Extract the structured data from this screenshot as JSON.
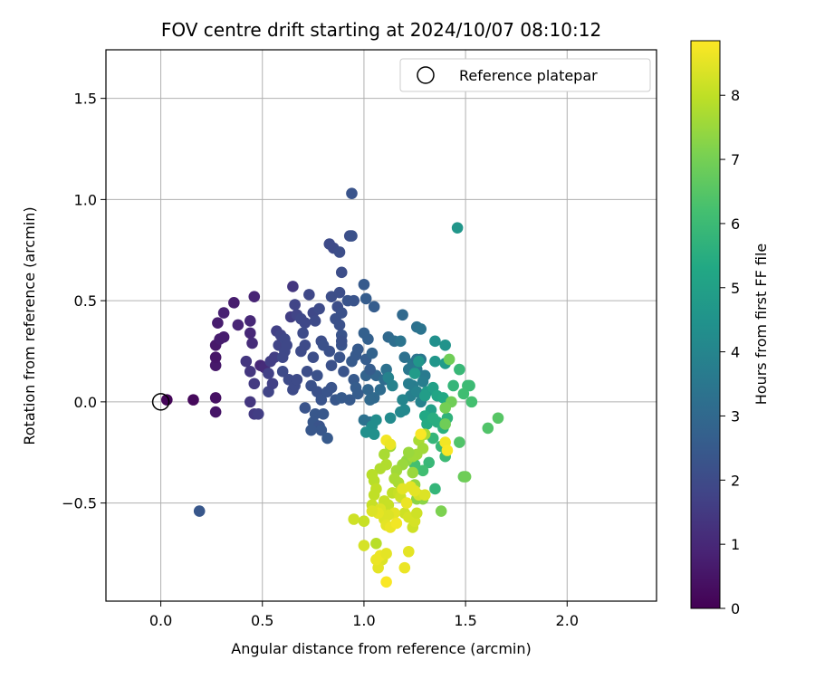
{
  "chart_data": {
    "type": "scatter",
    "title": "FOV centre drift starting at 2024/10/07 08:10:12",
    "xlabel": "Angular distance from reference (arcmin)",
    "ylabel": "Rotation from reference (arcmin)",
    "colorbar_label": "Hours from first FF file",
    "xlim": [
      -0.27,
      2.44
    ],
    "ylim": [
      -0.985,
      1.74
    ],
    "xticks": [
      0.0,
      0.5,
      1.0,
      1.5,
      2.0
    ],
    "yticks": [
      -0.5,
      0.0,
      0.5,
      1.0,
      1.5
    ],
    "xtick_labels": [
      "0.0",
      "0.5",
      "1.0",
      "1.5",
      "2.0"
    ],
    "ytick_labels": [
      "−0.5",
      "0.0",
      "0.5",
      "1.0",
      "1.5"
    ],
    "colorbar_range": [
      0,
      8.85
    ],
    "colorbar_ticks": [
      "0",
      "1",
      "2",
      "3",
      "4",
      "5",
      "6",
      "7",
      "8"
    ],
    "colormap": "viridis",
    "grid": true,
    "legend": {
      "position": "top-right",
      "entries": [
        {
          "label": "Reference platepar",
          "marker": "open-circle",
          "x": 0.0,
          "y": 0.0
        }
      ]
    },
    "points": [
      [
        0.03,
        0.01,
        0.1
      ],
      [
        0.16,
        0.01,
        0.2
      ],
      [
        0.27,
        0.02,
        0.4
      ],
      [
        0.27,
        -0.05,
        0.5
      ],
      [
        0.27,
        0.18,
        0.6
      ],
      [
        0.27,
        0.22,
        0.5
      ],
      [
        0.27,
        0.28,
        0.6
      ],
      [
        0.29,
        0.31,
        0.7
      ],
      [
        0.31,
        0.32,
        0.7
      ],
      [
        0.28,
        0.39,
        0.7
      ],
      [
        0.31,
        0.44,
        0.8
      ],
      [
        0.36,
        0.49,
        0.7
      ],
      [
        0.38,
        0.38,
        0.9
      ],
      [
        0.44,
        0.4,
        1.0
      ],
      [
        0.44,
        0.34,
        1.0
      ],
      [
        0.46,
        0.52,
        0.9
      ],
      [
        0.45,
        0.29,
        1.1
      ],
      [
        0.42,
        0.2,
        1.4
      ],
      [
        0.44,
        0.15,
        1.4
      ],
      [
        0.46,
        0.09,
        1.5
      ],
      [
        0.44,
        0.0,
        1.4
      ],
      [
        0.46,
        -0.06,
        1.5
      ],
      [
        0.48,
        -0.06,
        1.6
      ],
      [
        0.49,
        0.18,
        1.0
      ],
      [
        0.51,
        0.17,
        1.1
      ],
      [
        0.53,
        0.14,
        1.7
      ],
      [
        0.53,
        0.05,
        1.8
      ],
      [
        0.55,
        0.09,
        1.7
      ],
      [
        0.54,
        0.2,
        1.6
      ],
      [
        0.56,
        0.22,
        1.6
      ],
      [
        0.57,
        0.35,
        1.7
      ],
      [
        0.58,
        0.28,
        1.8
      ],
      [
        0.59,
        0.33,
        1.8
      ],
      [
        0.61,
        0.31,
        1.9
      ],
      [
        0.61,
        0.25,
        1.9
      ],
      [
        0.62,
        0.28,
        1.9
      ],
      [
        0.6,
        0.22,
        1.9
      ],
      [
        0.6,
        0.15,
        2.0
      ],
      [
        0.63,
        0.11,
        2.0
      ],
      [
        0.65,
        0.06,
        2.0
      ],
      [
        0.66,
        0.08,
        2.0
      ],
      [
        0.67,
        0.11,
        2.0
      ],
      [
        0.64,
        0.42,
        1.6
      ],
      [
        0.66,
        0.48,
        1.8
      ],
      [
        0.65,
        0.57,
        1.4
      ],
      [
        0.67,
        0.43,
        1.8
      ],
      [
        0.69,
        0.41,
        1.9
      ],
      [
        0.71,
        0.39,
        1.9
      ],
      [
        0.7,
        0.34,
        2.0
      ],
      [
        0.71,
        0.28,
        2.0
      ],
      [
        0.69,
        0.25,
        2.0
      ],
      [
        0.72,
        0.15,
        2.1
      ],
      [
        0.73,
        0.53,
        1.9
      ],
      [
        0.75,
        0.44,
        1.9
      ],
      [
        0.76,
        0.4,
        2.0
      ],
      [
        0.78,
        0.46,
        2.0
      ],
      [
        0.79,
        0.3,
        2.1
      ],
      [
        0.8,
        0.28,
        2.2
      ],
      [
        0.75,
        0.22,
        2.1
      ],
      [
        0.77,
        0.13,
        2.2
      ],
      [
        0.74,
        0.08,
        2.2
      ],
      [
        0.77,
        0.05,
        2.2
      ],
      [
        0.71,
        -0.03,
        2.3
      ],
      [
        0.76,
        -0.06,
        2.4
      ],
      [
        0.75,
        -0.1,
        2.4
      ],
      [
        0.78,
        -0.12,
        2.3
      ],
      [
        0.79,
        -0.14,
        2.4
      ],
      [
        0.74,
        -0.14,
        2.4
      ],
      [
        0.82,
        -0.18,
        2.5
      ],
      [
        0.8,
        -0.06,
        2.4
      ],
      [
        0.79,
        0.01,
        2.3
      ],
      [
        0.82,
        0.05,
        2.3
      ],
      [
        0.84,
        0.07,
        2.3
      ],
      [
        0.86,
        0.01,
        2.4
      ],
      [
        0.84,
        0.18,
        2.2
      ],
      [
        0.83,
        0.25,
        2.2
      ],
      [
        0.88,
        0.22,
        2.3
      ],
      [
        0.89,
        0.28,
        2.3
      ],
      [
        0.89,
        0.33,
        2.3
      ],
      [
        0.86,
        0.41,
        2.2
      ],
      [
        0.87,
        0.47,
        2.1
      ],
      [
        0.88,
        0.38,
        2.2
      ],
      [
        0.89,
        0.44,
        2.2
      ],
      [
        0.84,
        0.52,
        2.1
      ],
      [
        0.88,
        0.54,
        2.1
      ],
      [
        0.89,
        0.64,
        2.1
      ],
      [
        0.85,
        0.76,
        2.0
      ],
      [
        0.83,
        0.78,
        2.0
      ],
      [
        0.88,
        0.74,
        2.1
      ],
      [
        0.93,
        0.82,
        2.1
      ],
      [
        0.94,
        0.82,
        2.2
      ],
      [
        0.94,
        1.03,
        2.3
      ],
      [
        0.92,
        0.5,
        2.3
      ],
      [
        0.95,
        0.5,
        2.3
      ],
      [
        0.94,
        0.2,
        2.5
      ],
      [
        0.95,
        0.11,
        2.5
      ],
      [
        0.96,
        0.07,
        2.6
      ],
      [
        0.93,
        0.01,
        2.5
      ],
      [
        0.89,
        0.02,
        2.5
      ],
      [
        0.96,
        0.23,
        2.5
      ],
      [
        0.97,
        0.26,
        2.5
      ],
      [
        1.01,
        0.21,
        2.6
      ],
      [
        1.0,
        0.58,
        2.5
      ],
      [
        1.01,
        0.51,
        2.6
      ],
      [
        1.05,
        0.47,
        2.6
      ],
      [
        1.0,
        0.34,
        2.7
      ],
      [
        1.02,
        0.31,
        2.7
      ],
      [
        1.04,
        0.24,
        2.8
      ],
      [
        1.03,
        0.15,
        2.8
      ],
      [
        1.06,
        0.13,
        2.9
      ],
      [
        1.01,
        0.13,
        2.8
      ],
      [
        1.02,
        0.06,
        2.9
      ],
      [
        1.05,
        0.02,
        3.0
      ],
      [
        1.03,
        0.01,
        3.0
      ],
      [
        1.0,
        -0.09,
        3.3
      ],
      [
        1.03,
        -0.1,
        3.3
      ],
      [
        1.08,
        0.06,
        3.1
      ],
      [
        1.1,
        0.11,
        3.1
      ],
      [
        1.11,
        0.16,
        3.3
      ],
      [
        1.12,
        0.32,
        3.0
      ],
      [
        1.15,
        0.3,
        3.2
      ],
      [
        1.18,
        0.3,
        3.4
      ],
      [
        1.19,
        0.43,
        3.0
      ],
      [
        1.2,
        0.22,
        3.3
      ],
      [
        1.22,
        0.16,
        3.5
      ],
      [
        1.24,
        0.19,
        3.5
      ],
      [
        1.26,
        0.16,
        3.6
      ],
      [
        1.26,
        0.21,
        3.4
      ],
      [
        1.28,
        0.21,
        3.5
      ],
      [
        1.26,
        0.37,
        3.3
      ],
      [
        1.28,
        0.36,
        3.4
      ],
      [
        1.3,
        0.13,
        3.6
      ],
      [
        1.29,
        0.1,
        3.7
      ],
      [
        1.24,
        0.08,
        3.7
      ],
      [
        1.22,
        0.09,
        3.7
      ],
      [
        1.23,
        0.03,
        3.8
      ],
      [
        1.26,
        0.05,
        3.9
      ],
      [
        1.28,
        0.0,
        3.9
      ],
      [
        1.19,
        0.01,
        4.0
      ],
      [
        1.14,
        0.08,
        3.9
      ],
      [
        1.12,
        0.12,
        3.9
      ],
      [
        1.18,
        -0.05,
        4.1
      ],
      [
        1.2,
        -0.04,
        4.1
      ],
      [
        1.13,
        -0.08,
        4.2
      ],
      [
        1.06,
        -0.09,
        4.3
      ],
      [
        1.04,
        -0.12,
        4.3
      ],
      [
        1.01,
        -0.15,
        4.4
      ],
      [
        1.05,
        -0.16,
        4.4
      ],
      [
        1.27,
        0.2,
        4.6
      ],
      [
        1.25,
        0.14,
        4.8
      ],
      [
        1.31,
        0.05,
        4.8
      ],
      [
        1.3,
        0.03,
        4.9
      ],
      [
        1.33,
        -0.04,
        5.0
      ],
      [
        1.35,
        0.3,
        4.4
      ],
      [
        1.4,
        0.28,
        4.5
      ],
      [
        1.35,
        0.2,
        4.6
      ],
      [
        1.4,
        0.19,
        4.8
      ],
      [
        1.34,
        0.07,
        5.0
      ],
      [
        1.36,
        0.03,
        5.2
      ],
      [
        1.39,
        0.02,
        5.3
      ],
      [
        1.3,
        -0.07,
        5.3
      ],
      [
        1.31,
        -0.11,
        5.4
      ],
      [
        1.34,
        -0.08,
        5.5
      ],
      [
        1.36,
        -0.1,
        5.5
      ],
      [
        1.39,
        -0.13,
        5.6
      ],
      [
        1.41,
        -0.08,
        5.7
      ],
      [
        1.34,
        -0.18,
        5.8
      ],
      [
        1.38,
        -0.22,
        5.9
      ],
      [
        1.4,
        -0.27,
        6.0
      ],
      [
        1.32,
        -0.3,
        5.9
      ],
      [
        1.29,
        -0.34,
        6.1
      ],
      [
        1.25,
        -0.31,
        6.2
      ],
      [
        1.35,
        -0.43,
        5.8
      ],
      [
        1.46,
        0.86,
        4.6
      ],
      [
        1.44,
        0.08,
        5.8
      ],
      [
        1.47,
        0.16,
        5.9
      ],
      [
        1.51,
        0.08,
        6.0
      ],
      [
        1.52,
        0.08,
        6.0
      ],
      [
        1.49,
        0.04,
        6.1
      ],
      [
        1.53,
        0.0,
        6.2
      ],
      [
        1.47,
        -0.2,
        6.4
      ],
      [
        1.61,
        -0.13,
        6.4
      ],
      [
        1.66,
        -0.08,
        6.5
      ],
      [
        1.49,
        -0.37,
        6.8
      ],
      [
        1.5,
        -0.37,
        6.9
      ],
      [
        1.42,
        0.21,
        6.9
      ],
      [
        1.43,
        0.0,
        6.9
      ],
      [
        1.4,
        -0.11,
        6.9
      ],
      [
        1.4,
        -0.03,
        7.0
      ],
      [
        1.38,
        -0.54,
        7.1
      ],
      [
        1.28,
        -0.47,
        7.2
      ],
      [
        1.26,
        -0.48,
        7.3
      ],
      [
        1.29,
        -0.48,
        7.3
      ],
      [
        1.25,
        -0.41,
        7.4
      ],
      [
        1.24,
        -0.35,
        7.5
      ],
      [
        1.21,
        -0.29,
        7.4
      ],
      [
        1.19,
        -0.31,
        7.5
      ],
      [
        1.16,
        -0.34,
        7.6
      ],
      [
        1.15,
        -0.38,
        7.7
      ],
      [
        1.17,
        -0.4,
        7.7
      ],
      [
        1.24,
        -0.27,
        7.6
      ],
      [
        1.26,
        -0.26,
        7.6
      ],
      [
        1.22,
        -0.25,
        7.5
      ],
      [
        1.27,
        -0.19,
        7.7
      ],
      [
        1.3,
        -0.16,
        7.7
      ],
      [
        1.29,
        -0.23,
        7.6
      ],
      [
        1.13,
        -0.22,
        7.6
      ],
      [
        1.1,
        -0.26,
        7.7
      ],
      [
        1.11,
        -0.31,
        7.8
      ],
      [
        1.08,
        -0.33,
        7.8
      ],
      [
        1.04,
        -0.36,
        7.9
      ],
      [
        1.05,
        -0.39,
        7.9
      ],
      [
        1.06,
        -0.43,
        8.0
      ],
      [
        1.05,
        -0.46,
        8.0
      ],
      [
        1.04,
        -0.51,
        8.1
      ],
      [
        1.09,
        -0.53,
        8.2
      ],
      [
        1.1,
        -0.49,
        8.1
      ],
      [
        1.12,
        -0.51,
        8.1
      ],
      [
        1.14,
        -0.45,
        8.0
      ],
      [
        1.17,
        -0.45,
        8.1
      ],
      [
        1.18,
        -0.47,
        8.2
      ],
      [
        1.2,
        -0.55,
        8.2
      ],
      [
        1.22,
        -0.57,
        8.3
      ],
      [
        1.24,
        -0.62,
        8.2
      ],
      [
        1.25,
        -0.59,
        8.3
      ],
      [
        1.26,
        -0.55,
        8.2
      ],
      [
        1.27,
        -0.46,
        8.3
      ],
      [
        1.3,
        -0.46,
        8.4
      ],
      [
        1.25,
        -0.44,
        8.5
      ],
      [
        1.23,
        -0.42,
        8.5
      ],
      [
        1.21,
        -0.5,
        8.6
      ],
      [
        1.19,
        -0.43,
        8.5
      ],
      [
        1.15,
        -0.55,
        8.5
      ],
      [
        1.12,
        -0.56,
        8.4
      ],
      [
        1.1,
        -0.58,
        8.4
      ],
      [
        1.08,
        -0.53,
        8.4
      ],
      [
        1.07,
        -0.55,
        8.5
      ],
      [
        1.11,
        -0.61,
        8.5
      ],
      [
        1.13,
        -0.62,
        8.6
      ],
      [
        1.16,
        -0.6,
        8.7
      ],
      [
        1.09,
        -0.78,
        8.4
      ],
      [
        1.07,
        -0.82,
        8.5
      ],
      [
        1.06,
        -0.78,
        8.6
      ],
      [
        1.08,
        -0.76,
        8.6
      ],
      [
        1.11,
        -0.75,
        8.5
      ],
      [
        1.11,
        -0.89,
        8.8
      ],
      [
        1.2,
        -0.82,
        8.6
      ],
      [
        1.22,
        -0.74,
        8.5
      ],
      [
        0.95,
        -0.58,
        8.2
      ],
      [
        1.0,
        -0.59,
        8.1
      ],
      [
        1.0,
        -0.71,
        8.3
      ],
      [
        1.04,
        -0.54,
        8.4
      ],
      [
        1.06,
        -0.7,
        7.9
      ],
      [
        1.11,
        -0.19,
        8.7
      ],
      [
        1.13,
        -0.21,
        8.6
      ],
      [
        1.28,
        -0.16,
        8.8
      ],
      [
        1.4,
        -0.2,
        8.7
      ],
      [
        1.41,
        -0.24,
        8.8
      ],
      [
        1.03,
        0.16,
        2.6
      ],
      [
        0.19,
        -0.54,
        2.4
      ],
      [
        0.89,
        0.3,
        2.2
      ],
      [
        0.97,
        0.04,
        2.6
      ],
      [
        0.9,
        0.15,
        2.3
      ]
    ]
  }
}
